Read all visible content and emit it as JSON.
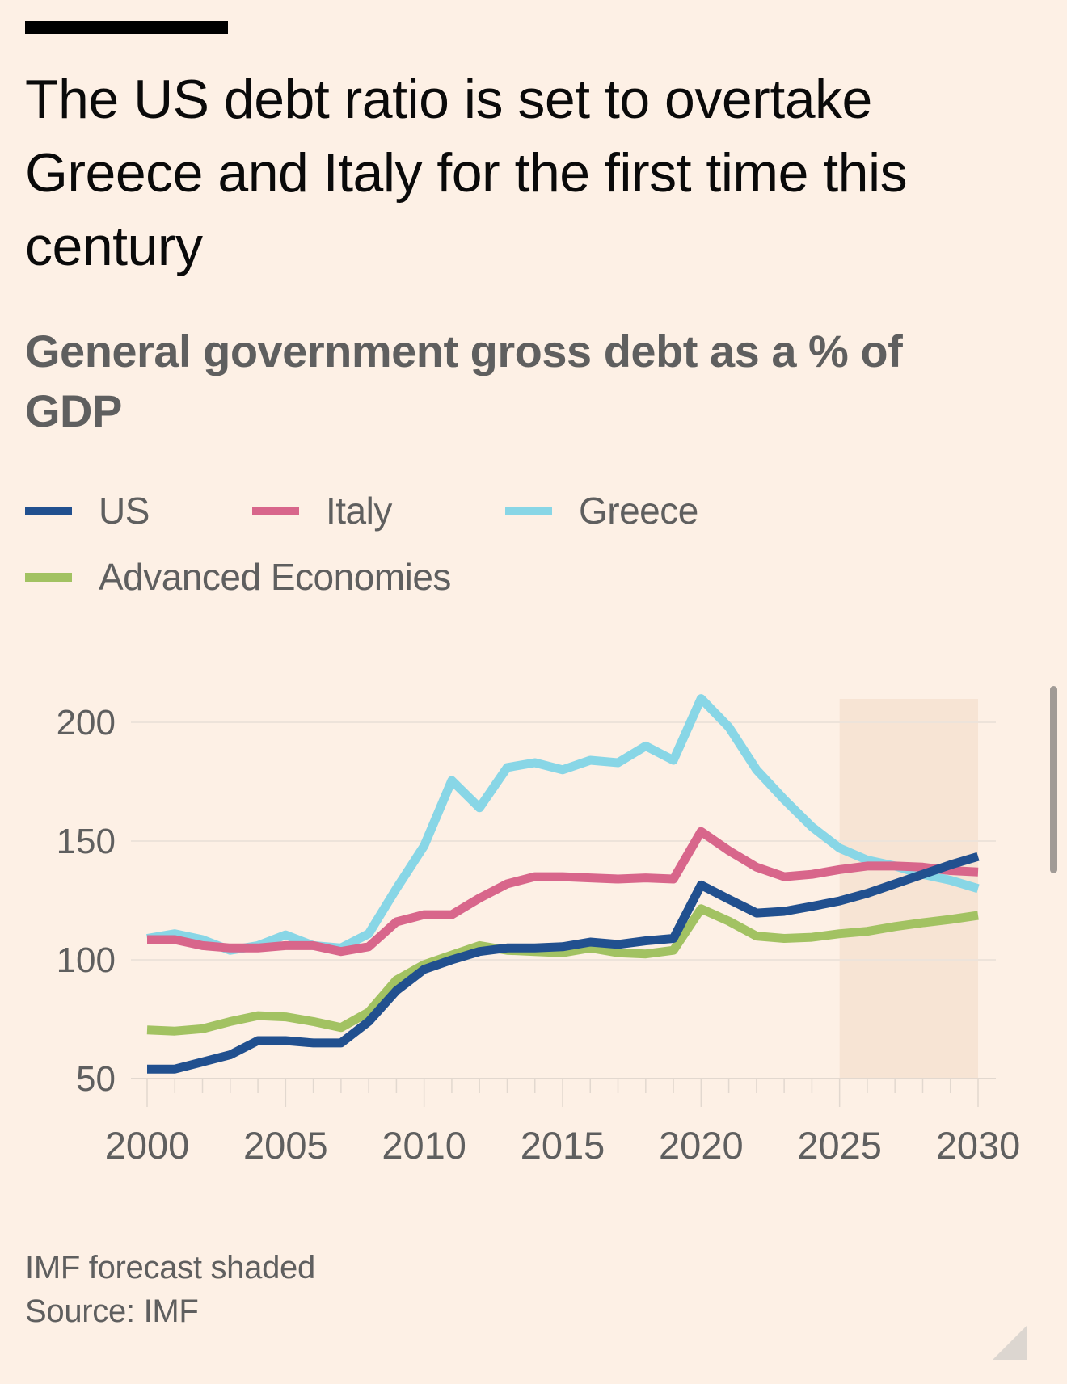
{
  "header": {
    "title": "The US debt ratio is set to overtake Greece and Italy for the first time this century",
    "subtitle": "General government gross debt as a % of GDP"
  },
  "legend": [
    {
      "label": "US",
      "color": "#21508f"
    },
    {
      "label": "Italy",
      "color": "#d8668b"
    },
    {
      "label": "Greece",
      "color": "#88d6e6"
    },
    {
      "label": "Advanced Economies",
      "color": "#a2c262"
    }
  ],
  "footer": {
    "note": "IMF forecast shaded",
    "source": "Source: IMF"
  },
  "chart_data": {
    "type": "line",
    "title": "The US debt ratio is set to overtake Greece and Italy for the first time this century",
    "subtitle": "General government gross debt as a % of GDP",
    "xlabel": "",
    "ylabel": "",
    "x": [
      2000,
      2001,
      2002,
      2003,
      2004,
      2005,
      2006,
      2007,
      2008,
      2009,
      2010,
      2011,
      2012,
      2013,
      2014,
      2015,
      2016,
      2017,
      2018,
      2019,
      2020,
      2021,
      2022,
      2023,
      2024,
      2025,
      2026,
      2027,
      2028,
      2029,
      2030
    ],
    "xlim": [
      2000,
      2030
    ],
    "ylim": [
      50,
      210
    ],
    "x_ticks": [
      2000,
      2005,
      2010,
      2015,
      2020,
      2025,
      2030
    ],
    "x_tick_labels": [
      "2000",
      "2005",
      "2010",
      "2015",
      "2020",
      "2025",
      "2030"
    ],
    "y_ticks": [
      50,
      100,
      150,
      200
    ],
    "y_tick_labels": [
      "50",
      "100",
      "150",
      "200"
    ],
    "grid": true,
    "legend_position": "top-left",
    "shaded_region": {
      "label": "IMF forecast shaded",
      "from": 2025,
      "to": 2030,
      "color": "#f7e4d4"
    },
    "series": [
      {
        "name": "US",
        "color": "#21508f",
        "values": [
          54,
          54,
          57,
          60,
          66,
          66,
          65,
          65,
          74,
          87,
          96,
          100,
          103.5,
          105,
          105,
          105.5,
          107.5,
          106.5,
          108,
          109,
          131.5,
          125.5,
          119.7,
          120.4,
          122.5,
          124.8,
          128,
          132,
          136,
          140,
          143.5
        ]
      },
      {
        "name": "Italy",
        "color": "#d8668b",
        "values": [
          108.5,
          108.5,
          106,
          105,
          105,
          106,
          106,
          103.5,
          105.5,
          116,
          119,
          119,
          126,
          132,
          135,
          135,
          134.5,
          134,
          134.5,
          134,
          154,
          146,
          139,
          135,
          136,
          138,
          139.5,
          139.5,
          139,
          137.6,
          137
        ]
      },
      {
        "name": "Greece",
        "color": "#88d6e6",
        "values": [
          109,
          111,
          108.5,
          104,
          106,
          110.5,
          106,
          105,
          111,
          130,
          148,
          175.5,
          164,
          181,
          183,
          180,
          184,
          183,
          190,
          184,
          210,
          198,
          180,
          167.5,
          156,
          147,
          142,
          139.5,
          136,
          133.5,
          130
        ]
      },
      {
        "name": "Advanced Economies",
        "color": "#a2c262",
        "values": [
          70.5,
          70,
          71,
          74,
          76.5,
          76,
          74,
          71.5,
          78,
          91.5,
          98,
          102,
          106,
          104,
          103.5,
          103,
          105,
          103,
          102.5,
          104,
          121.5,
          116.3,
          110,
          109,
          109.5,
          111,
          112,
          114,
          115.6,
          117,
          118.7
        ]
      }
    ]
  }
}
